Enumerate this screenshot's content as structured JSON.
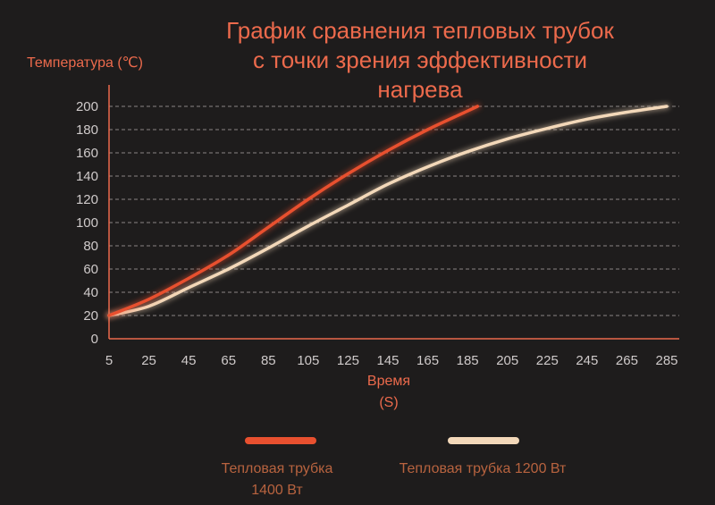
{
  "chart_data": {
    "type": "line",
    "title_lines": [
      "График сравнения тепловых трубок",
      "с точки зрения эффективности",
      "нагрева"
    ],
    "ylabel": "Температура (℃)",
    "xlabel_lines": [
      "Время",
      "(S)"
    ],
    "xlim": [
      5,
      285
    ],
    "ylim": [
      0,
      200
    ],
    "xticks": [
      5,
      25,
      45,
      65,
      85,
      105,
      125,
      145,
      165,
      185,
      205,
      225,
      245,
      265,
      285
    ],
    "yticks": [
      0,
      20,
      40,
      60,
      80,
      100,
      120,
      140,
      160,
      180,
      200
    ],
    "grid": true,
    "series": [
      {
        "name": "Тепловая трубка 1400 Вт",
        "name_lines": [
          "Тепловая трубка",
          "1400 Вт"
        ],
        "color": "#e8502f",
        "x": [
          5,
          25,
          45,
          65,
          85,
          105,
          125,
          145,
          165,
          185,
          190
        ],
        "y": [
          20,
          34,
          52,
          72,
          96,
          120,
          142,
          162,
          180,
          196,
          200
        ]
      },
      {
        "name": "Тепловая трубка 1200 Вт",
        "color": "#f3d8b9",
        "x": [
          5,
          25,
          45,
          65,
          85,
          105,
          125,
          145,
          165,
          185,
          205,
          225,
          245,
          265,
          285
        ],
        "y": [
          20,
          28,
          44,
          60,
          78,
          97,
          115,
          133,
          148,
          161,
          172,
          181,
          189,
          195,
          200
        ]
      }
    ]
  }
}
